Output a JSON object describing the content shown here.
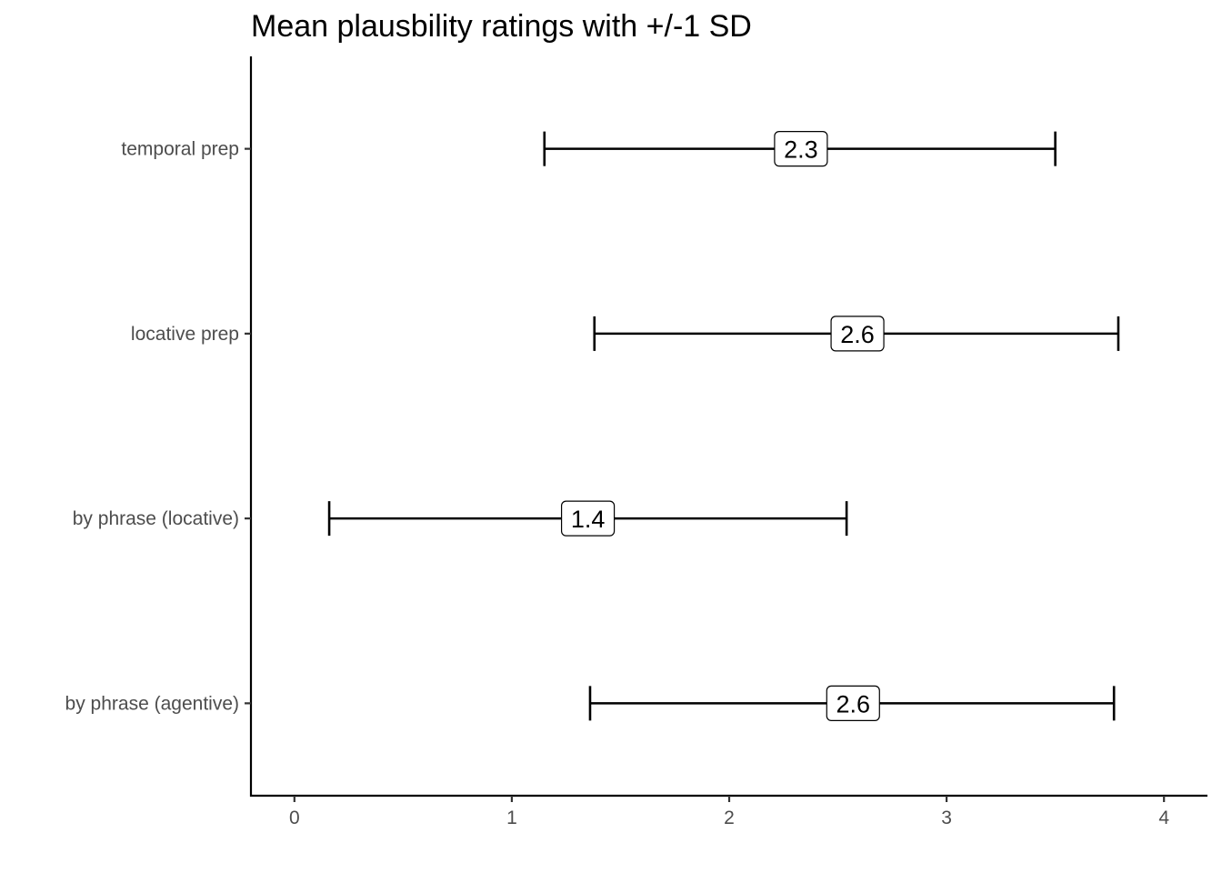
{
  "chart_data": {
    "type": "errorbar",
    "title": "Mean plausbility ratings with +/-1 SD",
    "xlabel": "",
    "ylabel": "",
    "xlim": [
      -0.2,
      4.2
    ],
    "x_ticks": [
      0,
      1,
      2,
      3,
      4
    ],
    "x_tick_labels": [
      "0",
      "1",
      "2",
      "3",
      "4"
    ],
    "grid": false,
    "categories": [
      "temporal prep",
      "locative prep",
      "by phrase (locative)",
      "by phrase (agentive)"
    ],
    "series": [
      {
        "points": [
          {
            "category": "temporal prep",
            "mean": 2.33,
            "lower": 1.15,
            "upper": 3.5,
            "label": "2.3"
          },
          {
            "category": "locative prep",
            "mean": 2.59,
            "lower": 1.38,
            "upper": 3.79,
            "label": "2.6"
          },
          {
            "category": "by phrase (locative)",
            "mean": 1.35,
            "lower": 0.16,
            "upper": 2.54,
            "label": "1.4"
          },
          {
            "category": "by phrase (agentive)",
            "mean": 2.57,
            "lower": 1.36,
            "upper": 3.77,
            "label": "2.6"
          }
        ]
      }
    ]
  }
}
